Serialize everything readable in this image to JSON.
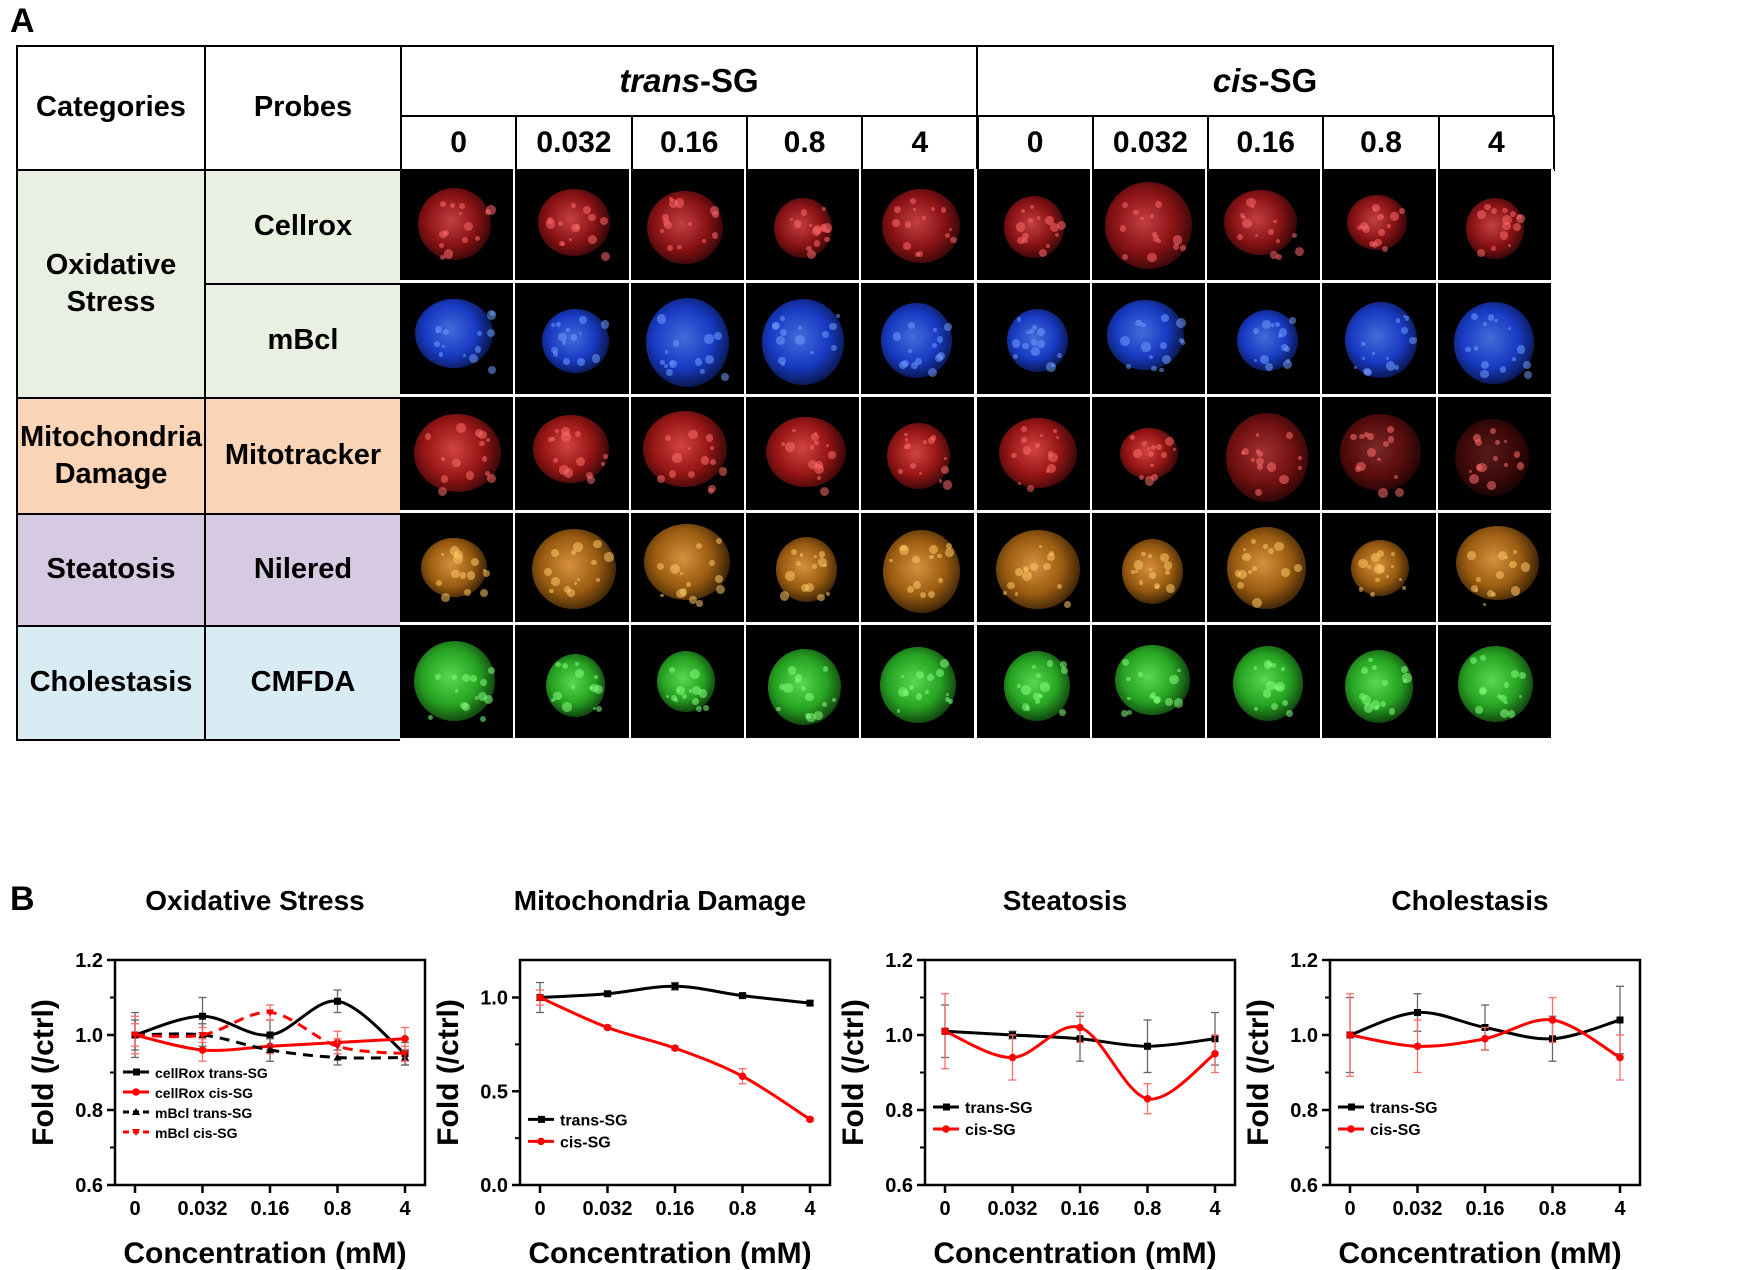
{
  "panel_a": {
    "letter": "A",
    "headers": {
      "categories": "Categories",
      "probes": "Probes",
      "trans_prefix": "trans",
      "trans_suffix": "-SG",
      "cis_prefix": "cis",
      "cis_suffix": "-SG"
    },
    "concentrations": [
      "0",
      "0.032",
      "0.16",
      "0.8",
      "4"
    ],
    "categories": [
      {
        "name_line1": "Oxidative",
        "name_line2": "Stress",
        "color": "#eaf0e1"
      },
      {
        "name_line1": "Mitochondria",
        "name_line2": "Damage",
        "color": "#f9d4b6"
      },
      {
        "name_line1": "Steatosis",
        "name_line2": "",
        "color": "#d5cae2"
      },
      {
        "name_line1": "Cholestasis",
        "name_line2": "",
        "color": "#d9ecf3"
      }
    ],
    "probes": [
      "Cellrox",
      "mBcl",
      "Mitotracker",
      "Nilered",
      "CMFDA"
    ],
    "probe_colors": [
      "#eaf0e1",
      "#eaf0e1",
      "#f9d4b6",
      "#d5cae2",
      "#d9ecf3"
    ],
    "stain_colors": [
      "#b3181b",
      "#1f4cff",
      "#c41c1c",
      "#c97816",
      "#33d42d"
    ]
  },
  "panel_b": {
    "letter": "B"
  },
  "chart_data": [
    {
      "type": "line",
      "title": "Oxidative Stress",
      "xlabel": "Concentration (mM)",
      "ylabel": "Fold (/ctrl)",
      "categories": [
        "0",
        "0.032",
        "0.16",
        "0.8",
        "4"
      ],
      "ylim": [
        0.6,
        1.2
      ],
      "yticks": [
        "0.6",
        "0.8",
        "1.0",
        "1.2"
      ],
      "legend_position": "bottom-left",
      "series": [
        {
          "name": "cellRox trans-SG",
          "color": "#000000",
          "dash": false,
          "marker": "square",
          "values": [
            1.0,
            1.05,
            1.0,
            1.09,
            0.95
          ],
          "errors": [
            0.06,
            0.05,
            0.04,
            0.03,
            0.03
          ]
        },
        {
          "name": "cellRox cis-SG",
          "color": "#ff0000",
          "dash": false,
          "marker": "circle",
          "values": [
            1.0,
            0.96,
            0.97,
            0.98,
            0.99
          ],
          "errors": [
            0.05,
            0.03,
            0.02,
            0.03,
            0.03
          ]
        },
        {
          "name": "mBcl trans-SG",
          "color": "#000000",
          "dash": true,
          "marker": "triangle",
          "values": [
            1.0,
            1.0,
            0.96,
            0.94,
            0.94
          ],
          "errors": [
            0.04,
            0.03,
            0.03,
            0.02,
            0.02
          ]
        },
        {
          "name": "mBcl cis-SG",
          "color": "#ff0000",
          "dash": true,
          "marker": "triangle-down",
          "values": [
            1.0,
            1.0,
            1.06,
            0.97,
            0.95
          ],
          "errors": [
            0.03,
            0.02,
            0.02,
            0.02,
            0.02
          ]
        }
      ]
    },
    {
      "type": "line",
      "title": "Mitochondria Damage",
      "xlabel": "Concentration (mM)",
      "ylabel": "Fold (/ctrl)",
      "categories": [
        "0",
        "0.032",
        "0.16",
        "0.8",
        "4"
      ],
      "ylim": [
        0.0,
        1.2
      ],
      "yticks": [
        "0.0",
        "0.5",
        "1.0"
      ],
      "legend_position": "middle-left",
      "series": [
        {
          "name": "trans-SG",
          "color": "#000000",
          "dash": false,
          "marker": "square",
          "values": [
            1.0,
            1.02,
            1.06,
            1.01,
            0.97
          ],
          "errors": [
            0.08,
            0.01,
            0.02,
            0.01,
            0.01
          ]
        },
        {
          "name": "cis-SG",
          "color": "#ff0000",
          "dash": false,
          "marker": "circle",
          "values": [
            1.0,
            0.84,
            0.73,
            0.58,
            0.35
          ],
          "errors": [
            0.04,
            0.01,
            0.01,
            0.04,
            0.01
          ]
        }
      ]
    },
    {
      "type": "line",
      "title": "Steatosis",
      "xlabel": "Concentration (mM)",
      "ylabel": "Fold (/ctrl)",
      "categories": [
        "0",
        "0.032",
        "0.16",
        "0.8",
        "4"
      ],
      "ylim": [
        0.6,
        1.2
      ],
      "yticks": [
        "0.6",
        "0.8",
        "1.0",
        "1.2"
      ],
      "legend_position": "bottom-left",
      "series": [
        {
          "name": "trans-SG",
          "color": "#000000",
          "dash": false,
          "marker": "square",
          "values": [
            1.01,
            1.0,
            0.99,
            0.97,
            0.99
          ],
          "errors": [
            0.07,
            0.01,
            0.06,
            0.07,
            0.07
          ]
        },
        {
          "name": "cis-SG",
          "color": "#ff0000",
          "dash": false,
          "marker": "circle",
          "values": [
            1.01,
            0.94,
            1.02,
            0.83,
            0.95
          ],
          "errors": [
            0.1,
            0.06,
            0.04,
            0.04,
            0.05
          ]
        }
      ]
    },
    {
      "type": "line",
      "title": "Cholestasis",
      "xlabel": "Concentration (mM)",
      "ylabel": "Fold (/ctrl)",
      "categories": [
        "0",
        "0.032",
        "0.16",
        "0.8",
        "4"
      ],
      "ylim": [
        0.6,
        1.2
      ],
      "yticks": [
        "0.6",
        "0.8",
        "1.0",
        "1.2"
      ],
      "legend_position": "bottom-left",
      "series": [
        {
          "name": "trans-SG",
          "color": "#000000",
          "dash": false,
          "marker": "square",
          "values": [
            1.0,
            1.06,
            1.02,
            0.99,
            1.04
          ],
          "errors": [
            0.1,
            0.05,
            0.06,
            0.06,
            0.09
          ]
        },
        {
          "name": "cis-SG",
          "color": "#ff0000",
          "dash": false,
          "marker": "circle",
          "values": [
            1.0,
            0.97,
            0.99,
            1.04,
            0.94
          ],
          "errors": [
            0.11,
            0.07,
            0.03,
            0.06,
            0.06
          ]
        }
      ]
    }
  ]
}
